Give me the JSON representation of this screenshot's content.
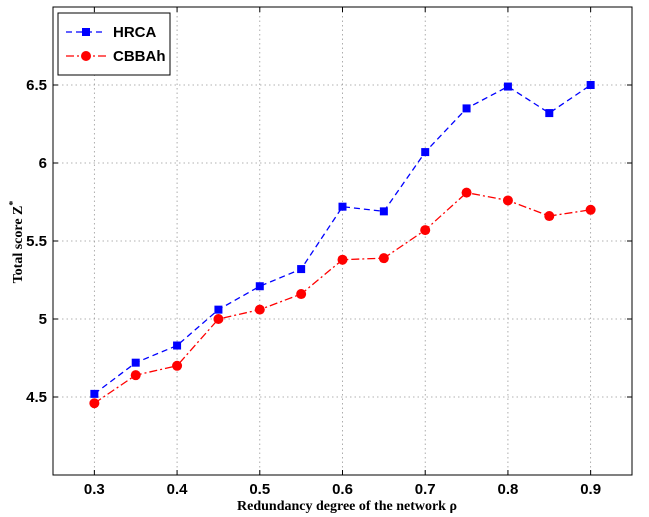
{
  "chart_data": {
    "type": "line",
    "xlabel": "Redundancy degree of the network ρ",
    "ylabel": "Total score Z",
    "ylabel_superscript": "*",
    "xlim": [
      0.25,
      0.95
    ],
    "ylim": [
      4.0,
      7.0
    ],
    "xticks": [
      "0.3",
      "0.4",
      "0.5",
      "0.6",
      "0.7",
      "0.8",
      "0.9"
    ],
    "yticks": [
      "4.5",
      "5",
      "5.5",
      "6",
      "6.5"
    ],
    "grid": true,
    "legend_placement": "top-left",
    "x": [
      0.3,
      0.35,
      0.4,
      0.45,
      0.5,
      0.55,
      0.6,
      0.65,
      0.7,
      0.75,
      0.8,
      0.85,
      0.9
    ],
    "series": [
      {
        "name": "HRCA",
        "color": "#0000ff",
        "marker": "square",
        "linestyle": "dashed",
        "values": [
          4.52,
          4.72,
          4.83,
          5.06,
          5.21,
          5.32,
          5.72,
          5.69,
          6.07,
          6.35,
          6.49,
          6.32,
          6.5
        ]
      },
      {
        "name": "CBBAh",
        "color": "#ff0000",
        "marker": "circle",
        "linestyle": "dash-dot",
        "values": [
          4.46,
          4.64,
          4.7,
          5.0,
          5.06,
          5.16,
          5.38,
          5.39,
          5.57,
          5.81,
          5.76,
          5.66,
          5.7
        ]
      }
    ]
  }
}
